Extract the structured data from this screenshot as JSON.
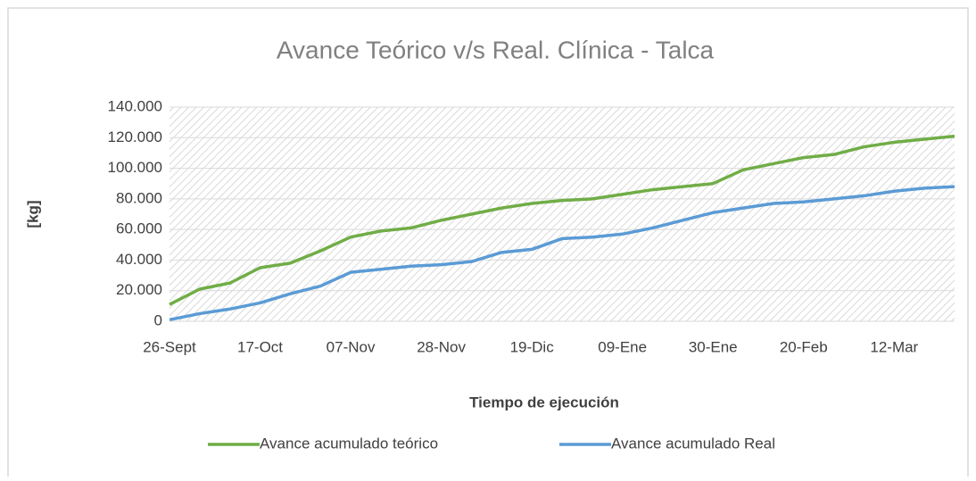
{
  "chart_data": {
    "type": "line",
    "title": "Avance Teórico v/s Real. Clínica - Talca",
    "y_label": "[kg]",
    "x_label": "Tiempo de ejecución",
    "categories": [
      "26-Sept",
      null,
      null,
      "17-Oct",
      null,
      null,
      "07-Nov",
      null,
      null,
      "28-Nov",
      null,
      null,
      "19-Dic",
      null,
      null,
      "09-Ene",
      null,
      null,
      "30-Ene",
      null,
      null,
      "20-Feb",
      null,
      null,
      "12-Mar",
      null,
      null
    ],
    "series": [
      {
        "name": "Avance acumulado teórico",
        "color": "#70ad47",
        "values": [
          11000,
          21000,
          25000,
          35000,
          38000,
          46000,
          55000,
          59000,
          61000,
          66000,
          70000,
          74000,
          77000,
          79000,
          80000,
          83000,
          86000,
          88000,
          90000,
          99000,
          103000,
          107000,
          109000,
          114000,
          117000,
          119000,
          121000
        ]
      },
      {
        "name": "Avance acumulado Real",
        "color": "#5b9bd5",
        "values": [
          1000,
          5000,
          8000,
          12000,
          18000,
          23000,
          32000,
          34000,
          36000,
          37000,
          39000,
          45000,
          47000,
          54000,
          55000,
          57000,
          61000,
          66000,
          71000,
          74000,
          77000,
          78000,
          80000,
          82000,
          85000,
          87000,
          88000
        ]
      }
    ],
    "ylim": [
      0,
      140000
    ],
    "yticks": [
      0,
      {
        "value": 20000,
        "label": "20.000"
      },
      {
        "value": 40000,
        "label": "40.000"
      },
      {
        "value": 60000,
        "label": "60.000"
      },
      {
        "value": 80000,
        "label": "80.000"
      },
      {
        "value": 100000,
        "label": "100.000"
      },
      {
        "value": 120000,
        "label": "120.000"
      },
      {
        "value": 140000,
        "label": "140.000"
      }
    ],
    "grid": true,
    "legend": "bottom"
  }
}
